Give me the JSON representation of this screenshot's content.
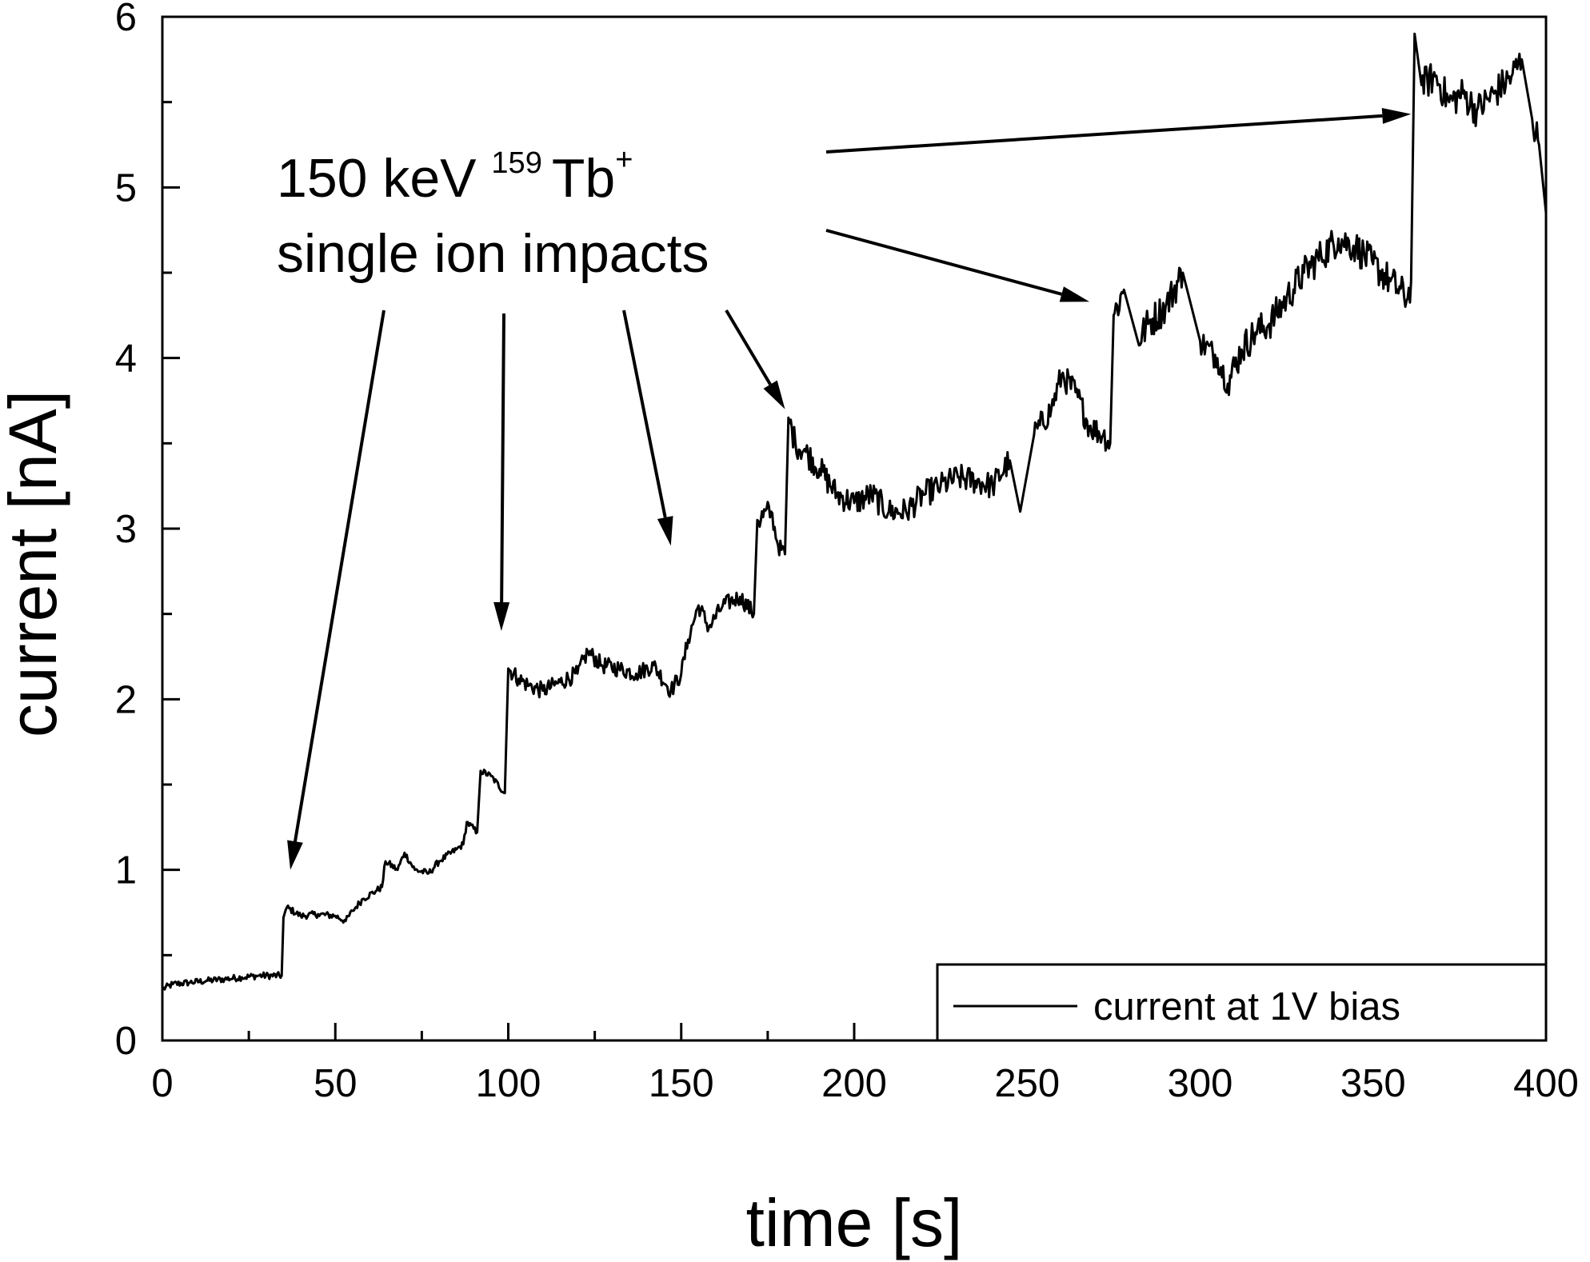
{
  "chart_data": {
    "type": "line",
    "xlabel": "time [s]",
    "ylabel": "current [nA]",
    "xlim": [
      0,
      400
    ],
    "ylim": [
      0,
      6
    ],
    "xticks": [
      0,
      50,
      100,
      150,
      200,
      250,
      300,
      350,
      400
    ],
    "xtick_labels": [
      "0",
      "50",
      "100",
      "150",
      "200",
      "250",
      "300",
      "350",
      "400"
    ],
    "yticks": [
      0,
      1,
      2,
      3,
      4,
      5,
      6
    ],
    "ytick_labels": [
      "0",
      "1",
      "2",
      "3",
      "4",
      "5",
      "6"
    ],
    "grid": false,
    "legend": {
      "placement": "bottom-right",
      "label": "current at 1V bias"
    },
    "annotation": {
      "line1_prefix": "150 keV ",
      "superscript_mass": "159",
      "element": "Tb",
      "superscript_charge": "+",
      "line2": "single ion impacts",
      "arrow_targets": [
        {
          "x": 37,
          "y": 1.0
        },
        {
          "x": 98,
          "y": 2.4
        },
        {
          "x": 147,
          "y": 2.9
        },
        {
          "x": 180,
          "y": 3.7
        },
        {
          "x": 268,
          "y": 4.33
        },
        {
          "x": 361,
          "y": 5.43
        }
      ]
    },
    "series": [
      {
        "name": "current at 1V bias",
        "points": [
          [
            0,
            0.3
          ],
          [
            3,
            0.33
          ],
          [
            8,
            0.34
          ],
          [
            13,
            0.35
          ],
          [
            18,
            0.36
          ],
          [
            23,
            0.37
          ],
          [
            28,
            0.38
          ],
          [
            34.5,
            0.38
          ],
          [
            35,
            0.72
          ],
          [
            36,
            0.78
          ],
          [
            40,
            0.73
          ],
          [
            45,
            0.74
          ],
          [
            50,
            0.73
          ],
          [
            53,
            0.7
          ],
          [
            55,
            0.76
          ],
          [
            58,
            0.83
          ],
          [
            62,
            0.88
          ],
          [
            63.5,
            0.9
          ],
          [
            64.5,
            1.05
          ],
          [
            68,
            1.0
          ],
          [
            70,
            1.1
          ],
          [
            73,
            1.0
          ],
          [
            77,
            0.98
          ],
          [
            80,
            1.05
          ],
          [
            85,
            1.12
          ],
          [
            87,
            1.15
          ],
          [
            88,
            1.28
          ],
          [
            91,
            1.22
          ],
          [
            92,
            1.58
          ],
          [
            95,
            1.55
          ],
          [
            99,
            1.45
          ],
          [
            100,
            2.18
          ],
          [
            103,
            2.12
          ],
          [
            106,
            2.08
          ],
          [
            110,
            2.05
          ],
          [
            115,
            2.1
          ],
          [
            120,
            2.15
          ],
          [
            123,
            2.28
          ],
          [
            127,
            2.2
          ],
          [
            132,
            2.18
          ],
          [
            137,
            2.15
          ],
          [
            142,
            2.2
          ],
          [
            147,
            2.05
          ],
          [
            150,
            2.15
          ],
          [
            152,
            2.35
          ],
          [
            155,
            2.55
          ],
          [
            158,
            2.42
          ],
          [
            162,
            2.55
          ],
          [
            167,
            2.6
          ],
          [
            171,
            2.5
          ],
          [
            172,
            3.05
          ],
          [
            176,
            3.1
          ],
          [
            178,
            2.9
          ],
          [
            180,
            2.85
          ],
          [
            181,
            3.65
          ],
          [
            183,
            3.5
          ],
          [
            186,
            3.45
          ],
          [
            190,
            3.35
          ],
          [
            195,
            3.2
          ],
          [
            200,
            3.15
          ],
          [
            205,
            3.2
          ],
          [
            210,
            3.1
          ],
          [
            215,
            3.1
          ],
          [
            220,
            3.2
          ],
          [
            225,
            3.25
          ],
          [
            230,
            3.3
          ],
          [
            235,
            3.28
          ],
          [
            240,
            3.25
          ],
          [
            245,
            3.4
          ],
          [
            248,
            3.1
          ],
          [
            252,
            3.55
          ],
          [
            257,
            3.7
          ],
          [
            260,
            3.9
          ],
          [
            264,
            3.8
          ],
          [
            268,
            3.6
          ],
          [
            272,
            3.55
          ],
          [
            274,
            3.5
          ],
          [
            275,
            4.25
          ],
          [
            278,
            4.4
          ],
          [
            282,
            4.1
          ],
          [
            285,
            4.2
          ],
          [
            290,
            4.3
          ],
          [
            295,
            4.5
          ],
          [
            300,
            4.1
          ],
          [
            305,
            4.0
          ],
          [
            308,
            3.85
          ],
          [
            312,
            4.05
          ],
          [
            316,
            4.15
          ],
          [
            320,
            4.2
          ],
          [
            325,
            4.35
          ],
          [
            330,
            4.5
          ],
          [
            335,
            4.6
          ],
          [
            340,
            4.7
          ],
          [
            345,
            4.65
          ],
          [
            350,
            4.55
          ],
          [
            355,
            4.45
          ],
          [
            360,
            4.35
          ],
          [
            361,
            4.45
          ],
          [
            362,
            5.9
          ],
          [
            364,
            5.6
          ],
          [
            368,
            5.65
          ],
          [
            372,
            5.5
          ],
          [
            376,
            5.55
          ],
          [
            380,
            5.45
          ],
          [
            385,
            5.55
          ],
          [
            390,
            5.65
          ],
          [
            393,
            5.75
          ],
          [
            396,
            5.4
          ],
          [
            398,
            5.25
          ],
          [
            400,
            4.85
          ]
        ]
      }
    ]
  }
}
